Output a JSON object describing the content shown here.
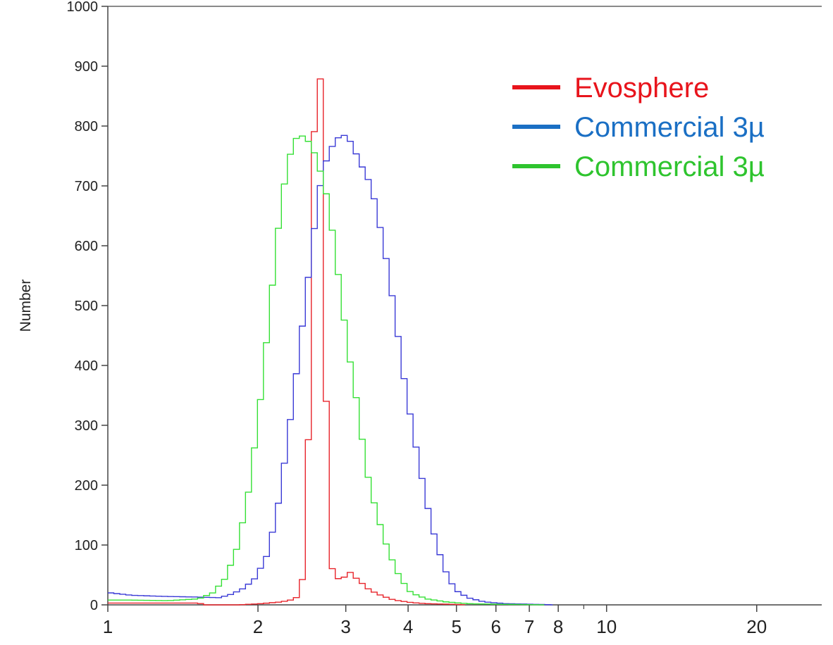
{
  "chart_data": {
    "type": "line",
    "step": true,
    "xscale": "log",
    "xlim": [
      1,
      27
    ],
    "ylim": [
      0,
      1000
    ],
    "ylabel": "Number",
    "xlabel": "",
    "title": "",
    "grid": false,
    "legend_position": "top-right",
    "yticks": [
      0,
      100,
      200,
      300,
      400,
      500,
      600,
      700,
      800,
      900,
      1000
    ],
    "xticks": [
      1,
      2,
      3,
      4,
      5,
      6,
      7,
      8,
      10,
      20
    ],
    "xtick_labels": [
      "1",
      "2",
      "3",
      "4",
      "5",
      "6",
      "7",
      "8",
      "10",
      "20"
    ],
    "minor_xticks": [
      9,
      30
    ],
    "series": [
      {
        "name": "Evosphere",
        "color": "#e8242b",
        "legend_color": "#e8141c",
        "points": [
          [
            1.0,
            3
          ],
          [
            1.2,
            3
          ],
          [
            1.5,
            3
          ],
          [
            1.55,
            0
          ],
          [
            1.8,
            0
          ],
          [
            2.0,
            2
          ],
          [
            2.2,
            5
          ],
          [
            2.35,
            10
          ],
          [
            2.42,
            40
          ],
          [
            2.47,
            150
          ],
          [
            2.5,
            350
          ],
          [
            2.53,
            600
          ],
          [
            2.56,
            800
          ],
          [
            2.59,
            930
          ],
          [
            2.62,
            920
          ],
          [
            2.65,
            800
          ],
          [
            2.68,
            500
          ],
          [
            2.71,
            300
          ],
          [
            2.74,
            130
          ],
          [
            2.78,
            60
          ],
          [
            2.83,
            45
          ],
          [
            2.9,
            42
          ],
          [
            2.97,
            50
          ],
          [
            3.03,
            55
          ],
          [
            3.1,
            45
          ],
          [
            3.2,
            35
          ],
          [
            3.3,
            25
          ],
          [
            3.5,
            15
          ],
          [
            3.7,
            8
          ],
          [
            4.0,
            4
          ],
          [
            4.3,
            2
          ],
          [
            4.8,
            1
          ],
          [
            5.2,
            0
          ]
        ]
      },
      {
        "name": "Commercial 3µ",
        "color": "#3a3ad6",
        "legend_color": "#1a6fc4",
        "points": [
          [
            1.0,
            20
          ],
          [
            1.1,
            16
          ],
          [
            1.3,
            14
          ],
          [
            1.5,
            13
          ],
          [
            1.65,
            12
          ],
          [
            1.75,
            18
          ],
          [
            1.85,
            28
          ],
          [
            1.95,
            45
          ],
          [
            2.05,
            80
          ],
          [
            2.15,
            150
          ],
          [
            2.25,
            260
          ],
          [
            2.35,
            380
          ],
          [
            2.45,
            500
          ],
          [
            2.55,
            620
          ],
          [
            2.65,
            720
          ],
          [
            2.75,
            760
          ],
          [
            2.85,
            780
          ],
          [
            2.95,
            785
          ],
          [
            3.05,
            770
          ],
          [
            3.15,
            740
          ],
          [
            3.25,
            720
          ],
          [
            3.35,
            690
          ],
          [
            3.45,
            640
          ],
          [
            3.6,
            560
          ],
          [
            3.75,
            460
          ],
          [
            3.9,
            360
          ],
          [
            4.1,
            260
          ],
          [
            4.3,
            170
          ],
          [
            4.5,
            100
          ],
          [
            4.7,
            55
          ],
          [
            4.9,
            25
          ],
          [
            5.2,
            12
          ],
          [
            5.6,
            5
          ],
          [
            6.2,
            2
          ],
          [
            7.0,
            1
          ],
          [
            7.8,
            0
          ]
        ]
      },
      {
        "name": "Commercial 3µ",
        "color": "#35e035",
        "legend_color": "#2ec42e",
        "points": [
          [
            1.0,
            8
          ],
          [
            1.1,
            8
          ],
          [
            1.3,
            7
          ],
          [
            1.5,
            10
          ],
          [
            1.6,
            20
          ],
          [
            1.7,
            45
          ],
          [
            1.8,
            100
          ],
          [
            1.9,
            200
          ],
          [
            2.0,
            350
          ],
          [
            2.1,
            520
          ],
          [
            2.2,
            680
          ],
          [
            2.3,
            760
          ],
          [
            2.38,
            788
          ],
          [
            2.45,
            780
          ],
          [
            2.52,
            770
          ],
          [
            2.6,
            740
          ],
          [
            2.7,
            690
          ],
          [
            2.8,
            610
          ],
          [
            2.9,
            510
          ],
          [
            3.0,
            420
          ],
          [
            3.1,
            350
          ],
          [
            3.2,
            270
          ],
          [
            3.3,
            200
          ],
          [
            3.45,
            140
          ],
          [
            3.6,
            90
          ],
          [
            3.8,
            45
          ],
          [
            4.0,
            20
          ],
          [
            4.3,
            10
          ],
          [
            4.7,
            5
          ],
          [
            5.2,
            2
          ],
          [
            6.0,
            1
          ],
          [
            7.5,
            0
          ]
        ]
      }
    ]
  }
}
